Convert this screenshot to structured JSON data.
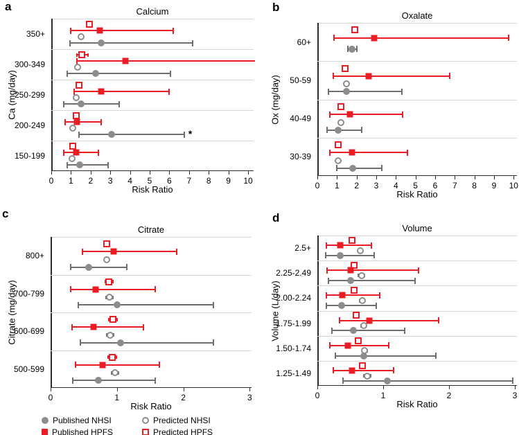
{
  "legend": [
    {
      "label": "Published NHSI",
      "marker": "filled-circle"
    },
    {
      "label": "Published HPFS",
      "marker": "filled-square"
    },
    {
      "label": "Predicted NHSI",
      "marker": "open-circle"
    },
    {
      "label": "Predicted HPFS",
      "marker": "open-square"
    }
  ],
  "colors": {
    "hpfs_red": "#ec1c24",
    "nhsi_marker_gray": "#8c8c8c",
    "nhsi_bar_gray": "#6e6e6e",
    "open_circle_stroke": "#8c8c8c",
    "separator_gray": "#d8d8d8",
    "axis_black": "#2b2b2b"
  },
  "chart_data": [
    {
      "type": "scatter",
      "subtype": "forest-plot",
      "panel_label": "a",
      "title": "Calcium",
      "ylabel": "Ca (mg/day)",
      "xlabel": "Risk Ratio",
      "xlim": [
        0,
        10
      ],
      "xticks": [
        0,
        1,
        2,
        3,
        4,
        5,
        6,
        7,
        8,
        9,
        10
      ],
      "categories": [
        {
          "name": "350+",
          "predicted_hpfs": {
            "v": 1.95
          },
          "published_hpfs": {
            "v": 2.45,
            "lo": 1.0,
            "hi": 6.2
          },
          "predicted_nhsi": {
            "v": 1.5
          },
          "published_nhsi": {
            "v": 2.55,
            "lo": 0.95,
            "hi": 7.2
          }
        },
        {
          "name": "300-349",
          "predicted_hpfs": {
            "v": 1.55,
            "lo": 1.3,
            "hi": 1.85
          },
          "published_hpfs": {
            "v": 3.75,
            "lo": 1.3,
            "hi": 10.3,
            "clip_right": true
          },
          "predicted_nhsi": {
            "v": 1.35
          },
          "published_nhsi": {
            "v": 2.25,
            "lo": 0.8,
            "hi": 6.05
          }
        },
        {
          "name": "250-299",
          "predicted_hpfs": {
            "v": 1.4
          },
          "published_hpfs": {
            "v": 2.55,
            "lo": 1.15,
            "hi": 6.0
          },
          "predicted_nhsi": {
            "v": 1.25
          },
          "published_nhsi": {
            "v": 1.5,
            "lo": 0.65,
            "hi": 3.45
          }
        },
        {
          "name": "200-249",
          "predicted_hpfs": {
            "v": 1.25
          },
          "published_hpfs": {
            "v": 1.3,
            "lo": 0.7,
            "hi": 2.55
          },
          "predicted_nhsi": {
            "v": 1.1
          },
          "published_nhsi": {
            "v": 3.05,
            "lo": 1.4,
            "hi": 6.75,
            "star": "*"
          }
        },
        {
          "name": "150-199",
          "predicted_hpfs": {
            "v": 1.1
          },
          "published_hpfs": {
            "v": 1.25,
            "lo": 0.65,
            "hi": 2.4
          },
          "predicted_nhsi": {
            "v": 1.05
          },
          "published_nhsi": {
            "v": 1.45,
            "lo": 0.8,
            "hi": 2.9
          }
        }
      ]
    },
    {
      "type": "scatter",
      "subtype": "forest-plot",
      "panel_label": "b",
      "title": "Oxalate",
      "ylabel": "Ox (mg/day)",
      "xlabel": "Risk Ratio",
      "xlim": [
        0,
        10
      ],
      "xticks": [
        0,
        1,
        2,
        3,
        4,
        5,
        6,
        7,
        8,
        9,
        10
      ],
      "categories": [
        {
          "name": "60+",
          "nhsi_overlap": true,
          "predicted_hpfs": {
            "v": 1.9
          },
          "published_hpfs": {
            "v": 2.9,
            "lo": 0.85,
            "hi": 9.75
          },
          "predicted_nhsi": {
            "v": 1.75
          },
          "published_nhsi": {
            "v": 1.75,
            "lo": 1.55,
            "hi": 2.0
          }
        },
        {
          "name": "50-59",
          "predicted_hpfs": {
            "v": 1.4
          },
          "published_hpfs": {
            "v": 2.6,
            "lo": 0.8,
            "hi": 6.75
          },
          "predicted_nhsi": {
            "v": 1.5
          },
          "published_nhsi": {
            "v": 1.5,
            "lo": 0.55,
            "hi": 4.3
          }
        },
        {
          "name": "40-49",
          "predicted_hpfs": {
            "v": 1.2
          },
          "published_hpfs": {
            "v": 1.65,
            "lo": 0.65,
            "hi": 4.35
          },
          "predicted_nhsi": {
            "v": 1.2
          },
          "published_nhsi": {
            "v": 1.05,
            "lo": 0.5,
            "hi": 2.25
          }
        },
        {
          "name": "30-39",
          "predicted_hpfs": {
            "v": 1.05
          },
          "published_hpfs": {
            "v": 1.75,
            "lo": 0.65,
            "hi": 4.6
          },
          "predicted_nhsi": {
            "v": 1.05
          },
          "published_nhsi": {
            "v": 1.8,
            "lo": 1.0,
            "hi": 3.3
          }
        }
      ]
    },
    {
      "type": "scatter",
      "subtype": "forest-plot",
      "panel_label": "c",
      "title": "Citrate",
      "ylabel": "Citrate (mg/day)",
      "xlabel": "Risk Ratio",
      "xlim": [
        0,
        3
      ],
      "xticks": [
        0,
        1,
        2,
        3
      ],
      "categories": [
        {
          "name": "800+",
          "predicted_hpfs": {
            "v": 0.85
          },
          "published_hpfs": {
            "v": 0.95,
            "lo": 0.48,
            "hi": 1.9
          },
          "predicted_nhsi": {
            "v": 0.85
          },
          "published_nhsi": {
            "v": 0.57,
            "lo": 0.3,
            "hi": 1.15
          }
        },
        {
          "name": "700-799",
          "predicted_hpfs": {
            "v": 0.88,
            "lo": 0.82,
            "hi": 0.94
          },
          "published_hpfs": {
            "v": 0.68,
            "lo": 0.3,
            "hi": 1.58
          },
          "predicted_nhsi": {
            "v": 0.89,
            "lo": 0.84,
            "hi": 0.94
          },
          "published_nhsi": {
            "v": 1.0,
            "lo": 0.42,
            "hi": 2.45
          }
        },
        {
          "name": "600-699",
          "predicted_hpfs": {
            "v": 0.94,
            "lo": 0.88,
            "hi": 1.0
          },
          "published_hpfs": {
            "v": 0.65,
            "lo": 0.32,
            "hi": 1.4
          },
          "predicted_nhsi": {
            "v": 0.9,
            "lo": 0.85,
            "hi": 0.95
          },
          "published_nhsi": {
            "v": 1.05,
            "lo": 0.45,
            "hi": 2.45
          }
        },
        {
          "name": "500-599",
          "predicted_hpfs": {
            "v": 0.93,
            "lo": 0.87,
            "hi": 0.99
          },
          "published_hpfs": {
            "v": 0.78,
            "lo": 0.38,
            "hi": 1.64
          },
          "predicted_nhsi": {
            "v": 0.97,
            "lo": 0.92,
            "hi": 1.02
          },
          "published_nhsi": {
            "v": 0.72,
            "lo": 0.33,
            "hi": 1.58
          }
        }
      ]
    },
    {
      "type": "scatter",
      "subtype": "forest-plot",
      "panel_label": "d",
      "title": "Volume",
      "ylabel": "Volume (L/day)",
      "xlabel": "Risk Ratio",
      "xlim": [
        0,
        3
      ],
      "xticks": [
        0,
        1,
        2,
        3
      ],
      "categories": [
        {
          "name": "2.5+",
          "predicted_hpfs": {
            "v": 0.53
          },
          "published_hpfs": {
            "v": 0.35,
            "lo": 0.14,
            "hi": 0.82
          },
          "predicted_nhsi": {
            "v": 0.65
          },
          "published_nhsi": {
            "v": 0.35,
            "lo": 0.13,
            "hi": 0.86
          }
        },
        {
          "name": "2.25-2.49",
          "predicted_hpfs": {
            "v": 0.56,
            "lo": 0.52,
            "hi": 0.6
          },
          "published_hpfs": {
            "v": 0.5,
            "lo": 0.15,
            "hi": 1.54
          },
          "predicted_nhsi": {
            "v": 0.67,
            "lo": 0.62,
            "hi": 0.72
          },
          "published_nhsi": {
            "v": 0.5,
            "lo": 0.17,
            "hi": 1.48
          }
        },
        {
          "name": "2.00-2.24",
          "predicted_hpfs": {
            "v": 0.56,
            "lo": 0.52,
            "hi": 0.6
          },
          "published_hpfs": {
            "v": 0.38,
            "lo": 0.14,
            "hi": 0.95
          },
          "predicted_nhsi": {
            "v": 0.68,
            "lo": 0.64,
            "hi": 0.72
          },
          "published_nhsi": {
            "v": 0.37,
            "lo": 0.14,
            "hi": 0.89
          }
        },
        {
          "name": "1.75-1.99",
          "predicted_hpfs": {
            "v": 0.59,
            "lo": 0.55,
            "hi": 0.63
          },
          "published_hpfs": {
            "v": 0.79,
            "lo": 0.34,
            "hi": 1.84
          },
          "predicted_nhsi": {
            "v": 0.7,
            "lo": 0.66,
            "hi": 0.74
          },
          "published_nhsi": {
            "v": 0.55,
            "lo": 0.22,
            "hi": 1.33
          }
        },
        {
          "name": "1.50-1.74",
          "predicted_hpfs": {
            "v": 0.62
          },
          "published_hpfs": {
            "v": 0.46,
            "lo": 0.19,
            "hi": 1.08
          },
          "predicted_nhsi": {
            "v": 0.72,
            "lo": 0.68,
            "hi": 0.76
          },
          "published_nhsi": {
            "v": 0.7,
            "lo": 0.27,
            "hi": 1.8
          }
        },
        {
          "name": "1.25-1.49",
          "predicted_hpfs": {
            "v": 0.68
          },
          "published_hpfs": {
            "v": 0.53,
            "lo": 0.24,
            "hi": 1.16
          },
          "predicted_nhsi": {
            "v": 0.76,
            "lo": 0.71,
            "hi": 0.81
          },
          "published_nhsi": {
            "v": 1.06,
            "lo": 0.39,
            "hi": 2.97
          }
        }
      ]
    }
  ]
}
